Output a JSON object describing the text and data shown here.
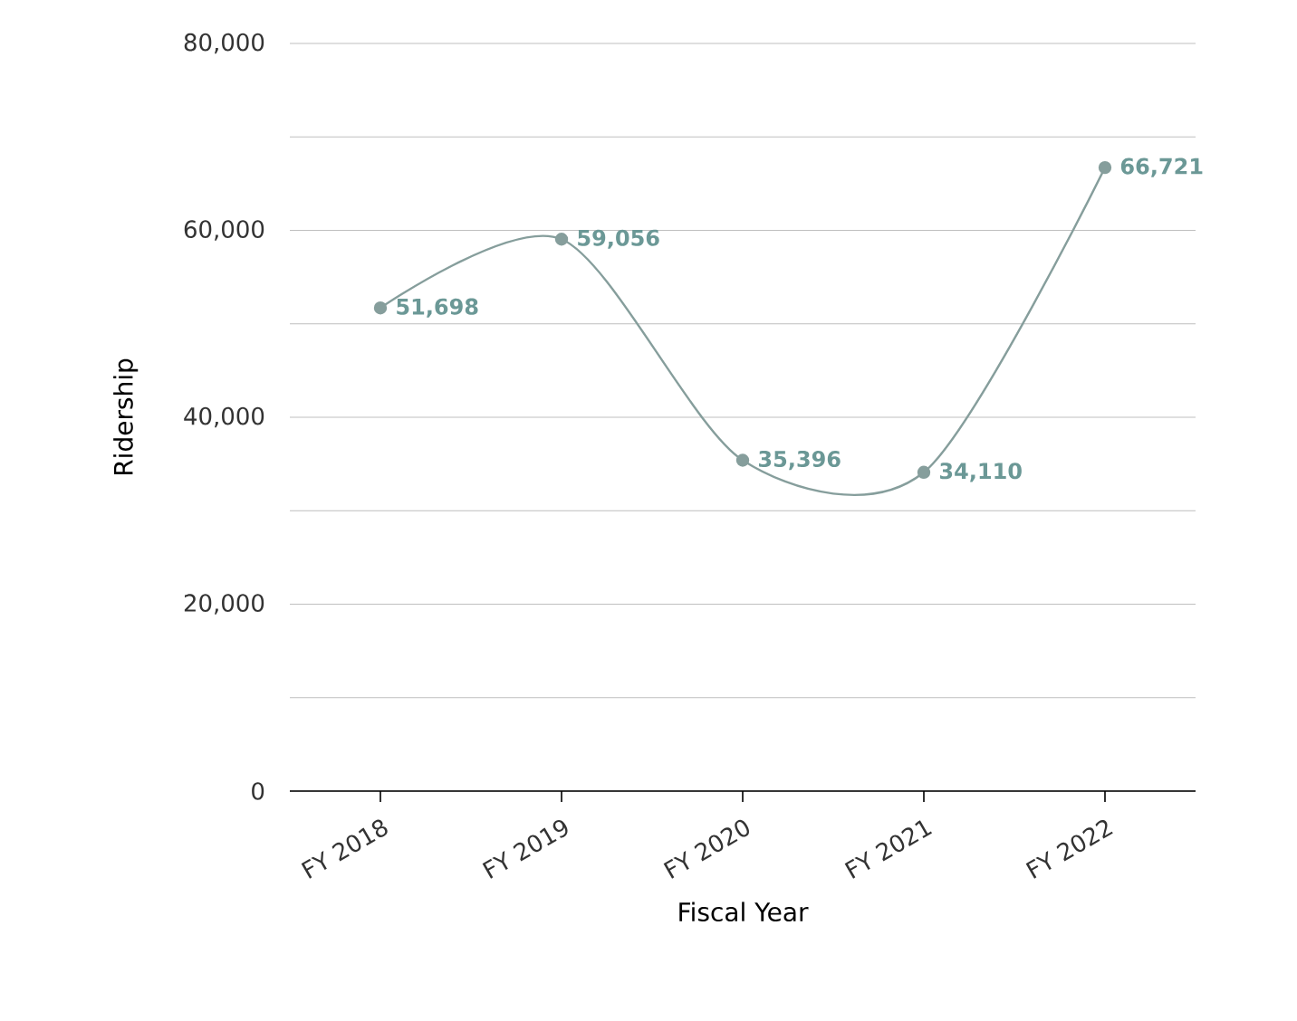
{
  "chart_data": {
    "type": "line",
    "xlabel": "Fiscal Year",
    "ylabel": "Ridership",
    "categories": [
      "FY 2018",
      "FY 2019",
      "FY 2020",
      "FY 2021",
      "FY 2022"
    ],
    "series": [
      {
        "color": "#869e9c",
        "values": [
          51698,
          59056,
          35396,
          34110,
          66721
        ],
        "value_labels": [
          "51,698",
          "59,056",
          "35,396",
          "34,110",
          "66,721"
        ]
      }
    ],
    "ylim": [
      0,
      80000
    ],
    "yticks": [
      0,
      {
        "value": 10000,
        "label": null
      },
      {
        "value": 20000,
        "label": "20,000"
      },
      {
        "value": 30000,
        "label": null
      },
      {
        "value": 40000,
        "label": "40,000"
      },
      {
        "value": 50000,
        "label": null
      },
      {
        "value": 60000,
        "label": "60,000"
      },
      {
        "value": 70000,
        "label": null
      },
      {
        "value": 80000,
        "label": "80,000"
      }
    ],
    "grid": "y",
    "marker": "circle",
    "line_style": "solid"
  }
}
